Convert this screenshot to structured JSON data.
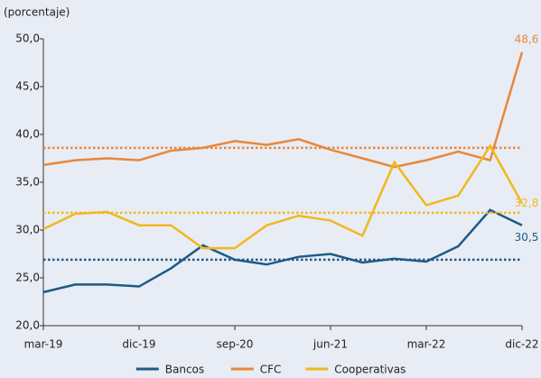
{
  "chart_data": {
    "type": "line",
    "y_label": "(porcentaje)",
    "categories": [
      "mar-19",
      null,
      null,
      "dic-19",
      null,
      null,
      "sep-20",
      null,
      null,
      "jun-21",
      null,
      null,
      "mar-22",
      null,
      null,
      "dic-22"
    ],
    "ylim": [
      20,
      50
    ],
    "yticks": [
      {
        "value": 20,
        "label": "20,0"
      },
      {
        "value": 25,
        "label": "25,0"
      },
      {
        "value": 30,
        "label": "30,0"
      },
      {
        "value": 35,
        "label": "35,0"
      },
      {
        "value": 40,
        "label": "40,0"
      },
      {
        "value": 45,
        "label": "45,0"
      },
      {
        "value": 50,
        "label": "50,0"
      }
    ],
    "grid": false,
    "legend": "bottom",
    "series": [
      {
        "name": "Bancos",
        "color": "#1c5a87",
        "mean": 26.9,
        "values": [
          23.5,
          24.3,
          24.3,
          24.1,
          26.0,
          28.4,
          26.9,
          26.4,
          27.2,
          27.5,
          26.6,
          27.0,
          26.7,
          28.3,
          32.1,
          30.5
        ],
        "value_labels": [
          null,
          null,
          null,
          null,
          null,
          null,
          null,
          null,
          null,
          null,
          null,
          null,
          null,
          null,
          null,
          "30,5"
        ]
      },
      {
        "name": "CFC",
        "color": "#e8873a",
        "mean": 38.6,
        "values": [
          36.8,
          37.3,
          37.5,
          37.3,
          38.3,
          38.6,
          39.3,
          38.9,
          39.5,
          38.4,
          37.5,
          36.6,
          37.3,
          38.2,
          37.3,
          48.6
        ],
        "value_labels": [
          null,
          null,
          null,
          null,
          null,
          null,
          null,
          null,
          null,
          null,
          null,
          null,
          null,
          null,
          null,
          "48,6"
        ]
      },
      {
        "name": "Cooperativas",
        "color": "#f1b81c",
        "mean": 31.8,
        "values": [
          30.1,
          31.7,
          31.9,
          30.5,
          30.5,
          28.1,
          28.1,
          30.5,
          31.5,
          31.0,
          29.4,
          37.1,
          32.6,
          33.6,
          38.8,
          32.8
        ],
        "value_labels": [
          null,
          null,
          null,
          null,
          null,
          null,
          null,
          null,
          null,
          null,
          null,
          null,
          null,
          null,
          null,
          "32,8"
        ]
      }
    ]
  }
}
